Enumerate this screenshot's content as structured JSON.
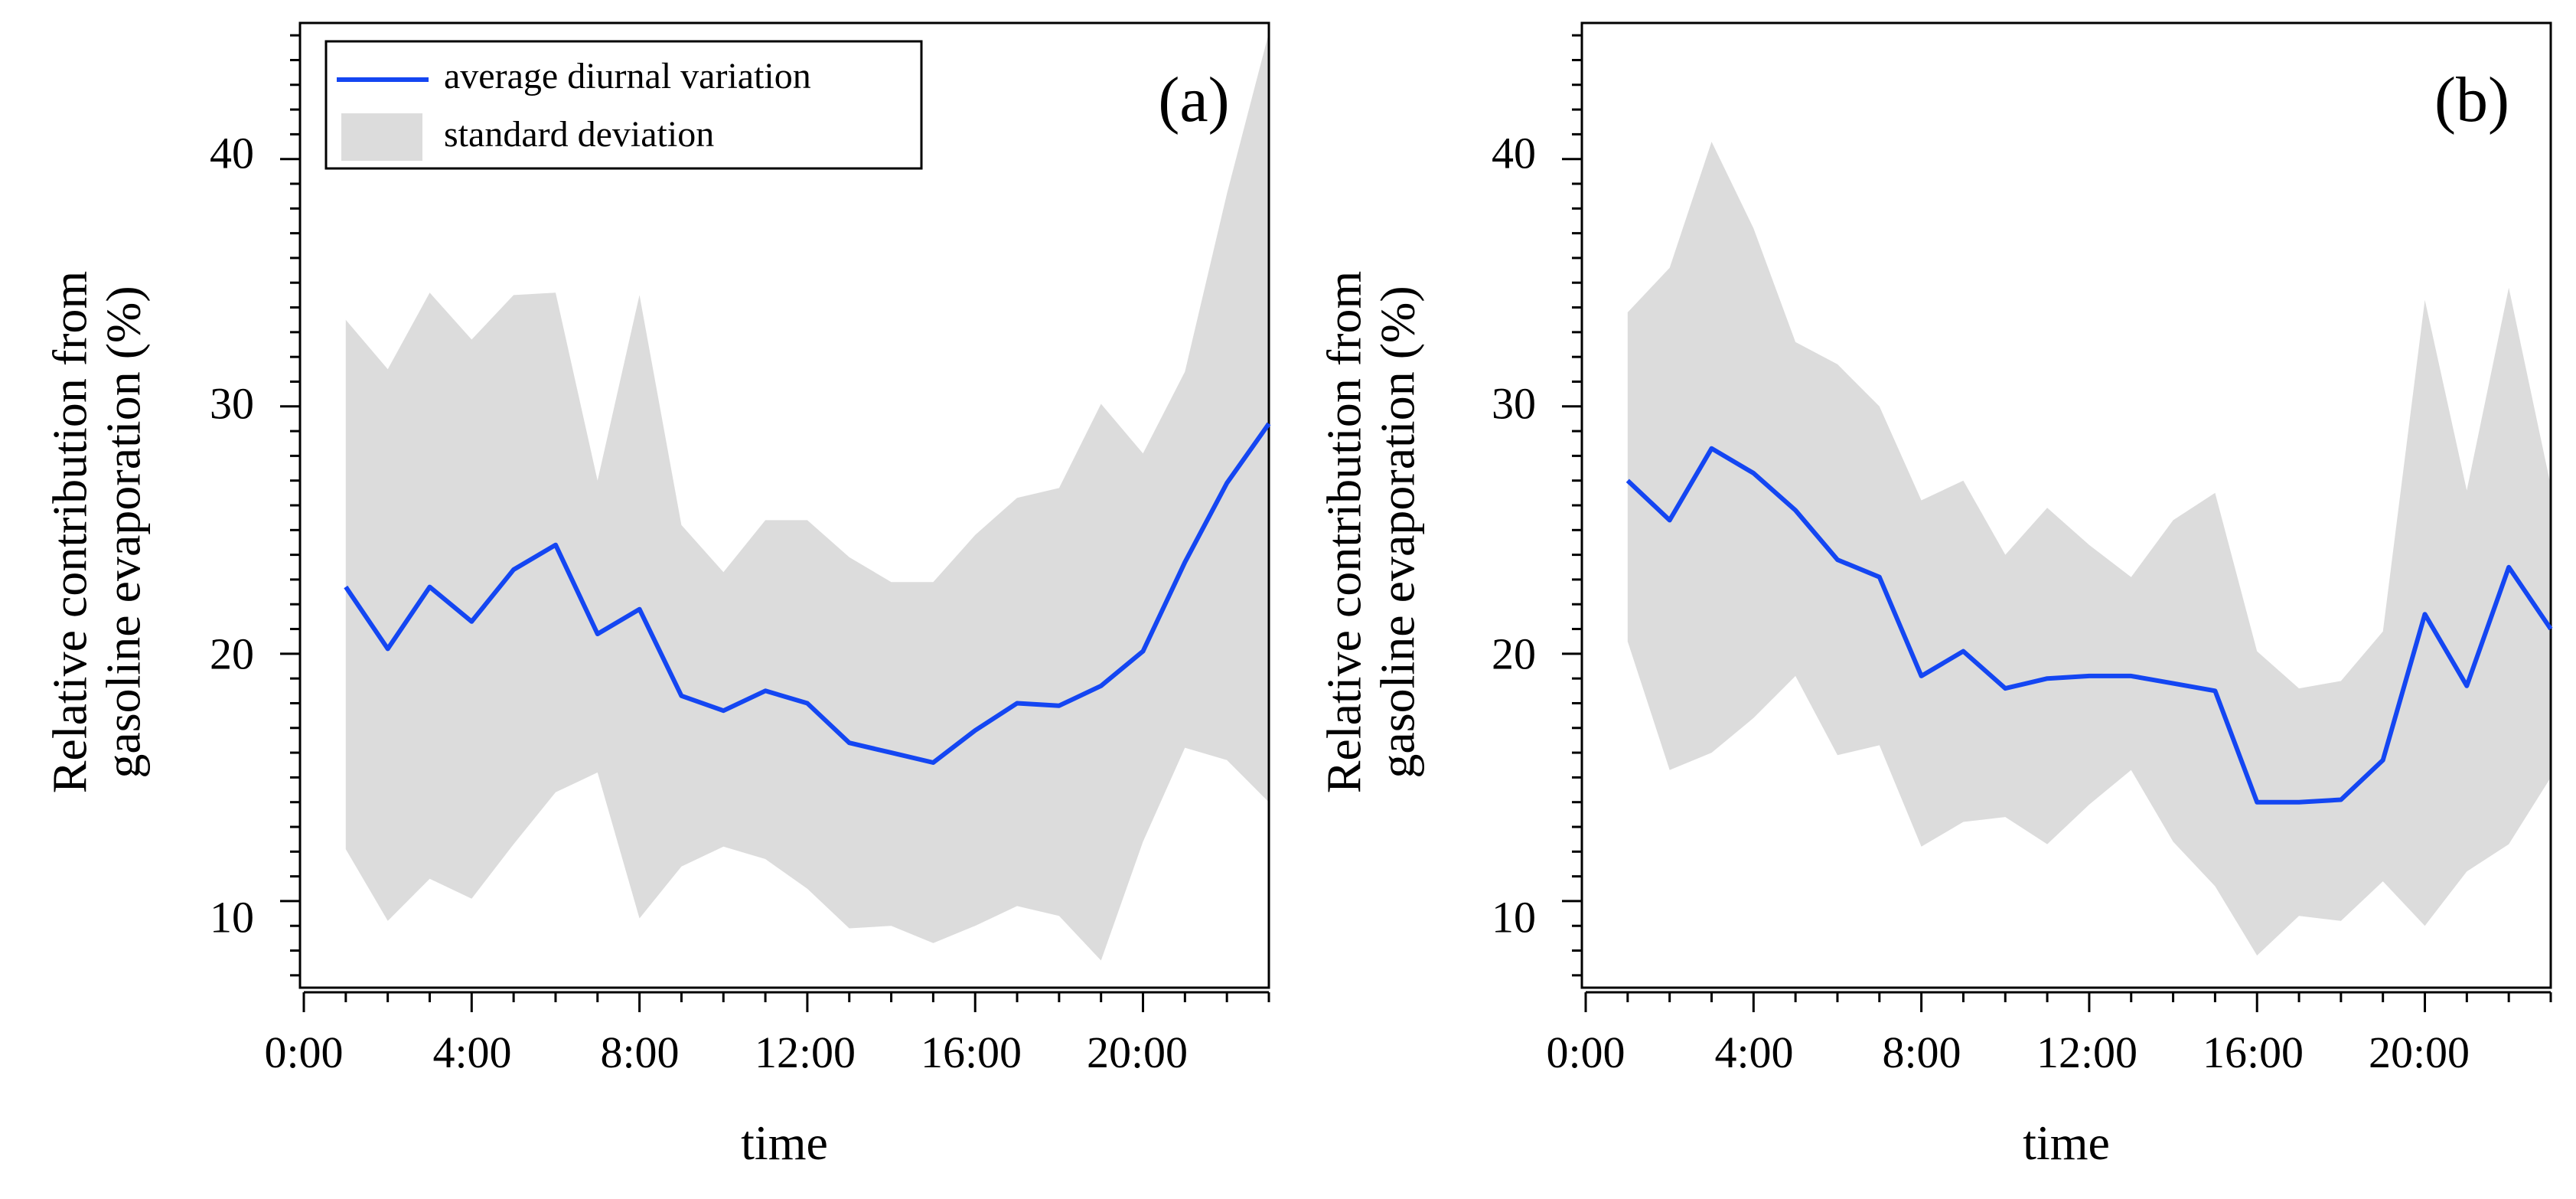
{
  "chart_data": [
    {
      "type": "line",
      "panel_label": "(a)",
      "title": "",
      "xlabel": "time",
      "ylabel_line1": "Relative contribution from",
      "ylabel_line2": "gasoline evaporation (%)",
      "xlim": [
        0,
        23
      ],
      "ylim": [
        6.5,
        45.5
      ],
      "x_ticks": [
        {
          "value": 0,
          "label": "0:00"
        },
        {
          "value": 4,
          "label": "4:00"
        },
        {
          "value": 8,
          "label": "8:00"
        },
        {
          "value": 12,
          "label": "12:00"
        },
        {
          "value": 16,
          "label": "16:00"
        },
        {
          "value": 20,
          "label": "20:00"
        }
      ],
      "y_ticks": [
        {
          "value": 10,
          "label": "10"
        },
        {
          "value": 20,
          "label": "20"
        },
        {
          "value": 30,
          "label": "30"
        },
        {
          "value": 40,
          "label": "40"
        }
      ],
      "legend": {
        "position": "top-left",
        "line_label": "average diurnal variation",
        "band_label": "standard deviation"
      },
      "x": [
        1,
        2,
        3,
        4,
        5,
        6,
        7,
        8,
        9,
        10,
        11,
        12,
        13,
        14,
        15,
        16,
        17,
        18,
        19,
        20,
        21,
        22,
        23
      ],
      "series": [
        {
          "name": "average diurnal variation",
          "color": "#1446f2",
          "values": [
            22.7,
            20.2,
            22.7,
            21.3,
            23.4,
            24.4,
            20.8,
            21.8,
            18.3,
            17.7,
            18.5,
            18.0,
            16.4,
            16.0,
            15.6,
            16.9,
            18.0,
            17.9,
            18.7,
            20.1,
            23.7,
            26.9,
            29.3
          ]
        },
        {
          "name": "standard deviation upper",
          "color": "#dcdcdc",
          "values": [
            33.5,
            31.5,
            34.6,
            32.7,
            34.5,
            34.6,
            27.0,
            34.5,
            25.2,
            23.3,
            25.4,
            25.4,
            23.9,
            22.9,
            22.9,
            24.8,
            26.3,
            26.7,
            30.1,
            28.1,
            31.4,
            38.6,
            45.1
          ]
        },
        {
          "name": "standard deviation lower",
          "color": "#dcdcdc",
          "values": [
            12.1,
            9.2,
            10.9,
            10.1,
            12.3,
            14.4,
            15.2,
            9.3,
            11.4,
            12.2,
            11.7,
            10.5,
            8.9,
            9.0,
            8.3,
            9.0,
            9.8,
            9.4,
            7.6,
            12.4,
            16.2,
            15.7,
            14.0
          ]
        }
      ]
    },
    {
      "type": "line",
      "panel_label": "(b)",
      "title": "",
      "xlabel": "time",
      "ylabel_line1": "Relative contribution from",
      "ylabel_line2": "gasoline evaporation (%)",
      "xlim": [
        0,
        23
      ],
      "ylim": [
        6.5,
        45.5
      ],
      "x_ticks": [
        {
          "value": 0,
          "label": "0:00"
        },
        {
          "value": 4,
          "label": "4:00"
        },
        {
          "value": 8,
          "label": "8:00"
        },
        {
          "value": 12,
          "label": "12:00"
        },
        {
          "value": 16,
          "label": "16:00"
        },
        {
          "value": 20,
          "label": "20:00"
        }
      ],
      "y_ticks": [
        {
          "value": 10,
          "label": "10"
        },
        {
          "value": 20,
          "label": "20"
        },
        {
          "value": 30,
          "label": "30"
        },
        {
          "value": 40,
          "label": "40"
        }
      ],
      "x": [
        1,
        2,
        3,
        4,
        5,
        6,
        7,
        8,
        9,
        10,
        11,
        12,
        13,
        14,
        15,
        16,
        17,
        18,
        19,
        20,
        21,
        22,
        23
      ],
      "series": [
        {
          "name": "average diurnal variation",
          "color": "#1446f2",
          "values": [
            27.0,
            25.4,
            28.3,
            27.3,
            25.8,
            23.8,
            23.1,
            19.1,
            20.1,
            18.6,
            19.0,
            19.1,
            19.1,
            18.8,
            18.5,
            14.0,
            14.0,
            14.1,
            15.7,
            21.6,
            18.7,
            23.5,
            21.0
          ]
        },
        {
          "name": "standard deviation upper",
          "color": "#dcdcdc",
          "values": [
            33.8,
            35.6,
            40.7,
            37.2,
            32.6,
            31.7,
            30.0,
            26.2,
            27.0,
            24.0,
            25.9,
            24.4,
            23.1,
            25.4,
            26.5,
            20.1,
            18.6,
            18.9,
            20.9,
            34.3,
            26.6,
            34.8,
            26.8
          ]
        },
        {
          "name": "standard deviation lower",
          "color": "#dcdcdc",
          "values": [
            20.5,
            15.3,
            16.0,
            17.4,
            19.1,
            15.9,
            16.3,
            12.2,
            13.2,
            13.4,
            12.3,
            13.9,
            15.3,
            12.4,
            10.6,
            7.8,
            9.4,
            9.2,
            10.8,
            9.0,
            11.2,
            12.3,
            15.0
          ]
        }
      ]
    }
  ]
}
